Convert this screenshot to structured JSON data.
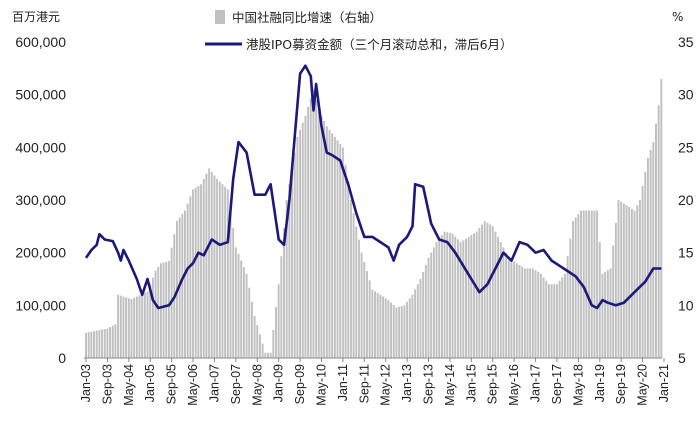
{
  "chart_data": {
    "type": "bar+line",
    "title": "",
    "left_axis": {
      "unit_label": "百万港元",
      "ylim": [
        0,
        600000
      ],
      "ticks": [
        0,
        100000,
        200000,
        300000,
        400000,
        500000,
        600000
      ],
      "tick_labels": [
        "0",
        "100,000",
        "200,000",
        "300,000",
        "400,000",
        "500,000",
        "600,000"
      ]
    },
    "right_axis": {
      "unit_label": "%",
      "ylim": [
        5,
        35
      ],
      "ticks": [
        5,
        10,
        15,
        20,
        25,
        30,
        35
      ],
      "tick_labels": [
        "5",
        "10",
        "15",
        "20",
        "25",
        "30",
        "35"
      ]
    },
    "x_axis": {
      "start": "2003-01",
      "end": "2021-01",
      "tick_labels": [
        "Jan-03",
        "Sep-03",
        "May-04",
        "Jan-05",
        "Sep-05",
        "May-06",
        "Jan-07",
        "Sep-07",
        "May-08",
        "Jan-09",
        "Sep-09",
        "May-10",
        "Jan-11",
        "Sep-11",
        "May-12",
        "Jan-13",
        "Sep-13",
        "May-14",
        "Jan-15",
        "Sep-15",
        "May-16",
        "Jan-17",
        "Sep-17",
        "May-18",
        "Jan-19",
        "Sep-19",
        "May-20",
        "Jan-21"
      ]
    },
    "legend": {
      "placement": "top"
    },
    "series": [
      {
        "name": "中国社融同比增速（右轴）",
        "type": "bar",
        "axis": "right",
        "color": "#c0c0c0",
        "x_start": "2003-01",
        "frequency": "monthly",
        "anchors": [
          [
            "2003-01",
            7.4
          ],
          [
            "2003-09",
            7.8
          ],
          [
            "2003-12",
            8.2
          ],
          [
            "2004-01",
            11.0
          ],
          [
            "2004-06",
            10.6
          ],
          [
            "2004-12",
            11.3
          ],
          [
            "2005-03",
            13.3
          ],
          [
            "2005-05",
            14.0
          ],
          [
            "2005-08",
            14.2
          ],
          [
            "2005-11",
            18.0
          ],
          [
            "2006-02",
            19.0
          ],
          [
            "2006-05",
            21.0
          ],
          [
            "2006-08",
            21.5
          ],
          [
            "2006-11",
            23.0
          ],
          [
            "2007-02",
            22.0
          ],
          [
            "2007-06",
            21.0
          ],
          [
            "2007-09",
            15.5
          ],
          [
            "2008-01",
            13.0
          ],
          [
            "2008-04",
            9.0
          ],
          [
            "2008-08",
            5.5
          ],
          [
            "2008-10",
            5.5
          ],
          [
            "2009-01",
            12.0
          ],
          [
            "2009-04",
            20.0
          ],
          [
            "2009-08",
            26.0
          ],
          [
            "2009-11",
            28.0
          ],
          [
            "2010-02",
            30.5
          ],
          [
            "2010-04",
            28.5
          ],
          [
            "2010-07",
            27.0
          ],
          [
            "2010-10",
            26.0
          ],
          [
            "2011-01",
            25.0
          ],
          [
            "2011-04",
            20.0
          ],
          [
            "2011-08",
            15.0
          ],
          [
            "2011-12",
            11.5
          ],
          [
            "2012-06",
            10.5
          ],
          [
            "2012-09",
            9.8
          ],
          [
            "2012-12",
            10.0
          ],
          [
            "2013-03",
            11.0
          ],
          [
            "2013-06",
            12.5
          ],
          [
            "2013-09",
            14.5
          ],
          [
            "2013-12",
            16.0
          ],
          [
            "2014-03",
            17.0
          ],
          [
            "2014-06",
            16.8
          ],
          [
            "2014-09",
            16.0
          ],
          [
            "2014-12",
            16.5
          ],
          [
            "2015-03",
            17.0
          ],
          [
            "2015-06",
            18.0
          ],
          [
            "2015-09",
            17.5
          ],
          [
            "2015-12",
            16.0
          ],
          [
            "2016-03",
            14.5
          ],
          [
            "2016-06",
            14.0
          ],
          [
            "2016-09",
            13.5
          ],
          [
            "2016-12",
            13.5
          ],
          [
            "2017-03",
            13.0
          ],
          [
            "2017-06",
            12.0
          ],
          [
            "2017-09",
            12.0
          ],
          [
            "2017-12",
            13.0
          ],
          [
            "2018-03",
            18.0
          ],
          [
            "2018-06",
            19.0
          ],
          [
            "2018-09",
            19.0
          ],
          [
            "2018-12",
            19.0
          ],
          [
            "2019-02",
            13.0
          ],
          [
            "2019-05",
            13.5
          ],
          [
            "2019-08",
            20.0
          ],
          [
            "2019-11",
            19.5
          ],
          [
            "2020-02",
            19.0
          ],
          [
            "2020-04",
            20.0
          ],
          [
            "2020-07",
            24.0
          ],
          [
            "2020-09",
            25.5
          ],
          [
            "2020-11",
            29.0
          ],
          [
            "2020-12",
            31.5
          ]
        ]
      },
      {
        "name": "港股IPO募资金额（三个月滚动总和，滞后6月）",
        "type": "line",
        "axis": "left",
        "color": "#1a1a7a",
        "points": [
          [
            "2003-01",
            190000
          ],
          [
            "2003-03",
            205000
          ],
          [
            "2003-05",
            215000
          ],
          [
            "2003-06",
            235000
          ],
          [
            "2003-08",
            225000
          ],
          [
            "2003-11",
            222000
          ],
          [
            "2004-01",
            200000
          ],
          [
            "2004-02",
            185000
          ],
          [
            "2004-03",
            205000
          ],
          [
            "2004-05",
            185000
          ],
          [
            "2004-08",
            150000
          ],
          [
            "2004-10",
            120000
          ],
          [
            "2004-12",
            150000
          ],
          [
            "2005-02",
            110000
          ],
          [
            "2005-04",
            95000
          ],
          [
            "2005-08",
            100000
          ],
          [
            "2005-10",
            115000
          ],
          [
            "2006-01",
            150000
          ],
          [
            "2006-03",
            170000
          ],
          [
            "2006-05",
            180000
          ],
          [
            "2006-07",
            200000
          ],
          [
            "2006-09",
            195000
          ],
          [
            "2006-12",
            225000
          ],
          [
            "2007-03",
            215000
          ],
          [
            "2007-06",
            220000
          ],
          [
            "2007-08",
            340000
          ],
          [
            "2007-10",
            410000
          ],
          [
            "2008-01",
            390000
          ],
          [
            "2008-04",
            310000
          ],
          [
            "2008-08",
            310000
          ],
          [
            "2008-10",
            330000
          ],
          [
            "2009-01",
            225000
          ],
          [
            "2009-03",
            215000
          ],
          [
            "2009-05",
            300000
          ],
          [
            "2009-07",
            420000
          ],
          [
            "2009-09",
            540000
          ],
          [
            "2009-11",
            555000
          ],
          [
            "2010-01",
            535000
          ],
          [
            "2010-02",
            470000
          ],
          [
            "2010-03",
            520000
          ],
          [
            "2010-05",
            440000
          ],
          [
            "2010-07",
            390000
          ],
          [
            "2010-09",
            385000
          ],
          [
            "2010-12",
            375000
          ],
          [
            "2011-03",
            330000
          ],
          [
            "2011-06",
            275000
          ],
          [
            "2011-09",
            230000
          ],
          [
            "2011-12",
            230000
          ],
          [
            "2012-03",
            220000
          ],
          [
            "2012-06",
            210000
          ],
          [
            "2012-08",
            185000
          ],
          [
            "2012-10",
            215000
          ],
          [
            "2013-01",
            230000
          ],
          [
            "2013-03",
            250000
          ],
          [
            "2013-04",
            330000
          ],
          [
            "2013-07",
            325000
          ],
          [
            "2013-10",
            255000
          ],
          [
            "2014-01",
            225000
          ],
          [
            "2014-04",
            220000
          ],
          [
            "2014-07",
            200000
          ],
          [
            "2014-10",
            175000
          ],
          [
            "2015-01",
            150000
          ],
          [
            "2015-04",
            125000
          ],
          [
            "2015-07",
            140000
          ],
          [
            "2015-10",
            170000
          ],
          [
            "2016-01",
            200000
          ],
          [
            "2016-04",
            185000
          ],
          [
            "2016-07",
            220000
          ],
          [
            "2016-10",
            215000
          ],
          [
            "2017-01",
            200000
          ],
          [
            "2017-04",
            205000
          ],
          [
            "2017-07",
            185000
          ],
          [
            "2017-10",
            175000
          ],
          [
            "2018-01",
            165000
          ],
          [
            "2018-04",
            155000
          ],
          [
            "2018-07",
            135000
          ],
          [
            "2018-10",
            100000
          ],
          [
            "2018-12",
            95000
          ],
          [
            "2019-02",
            110000
          ],
          [
            "2019-04",
            105000
          ],
          [
            "2019-07",
            100000
          ],
          [
            "2019-10",
            105000
          ],
          [
            "2019-12",
            115000
          ],
          [
            "2020-03",
            130000
          ],
          [
            "2020-06",
            145000
          ],
          [
            "2020-09",
            170000
          ],
          [
            "2020-12",
            170000
          ]
        ]
      }
    ]
  }
}
